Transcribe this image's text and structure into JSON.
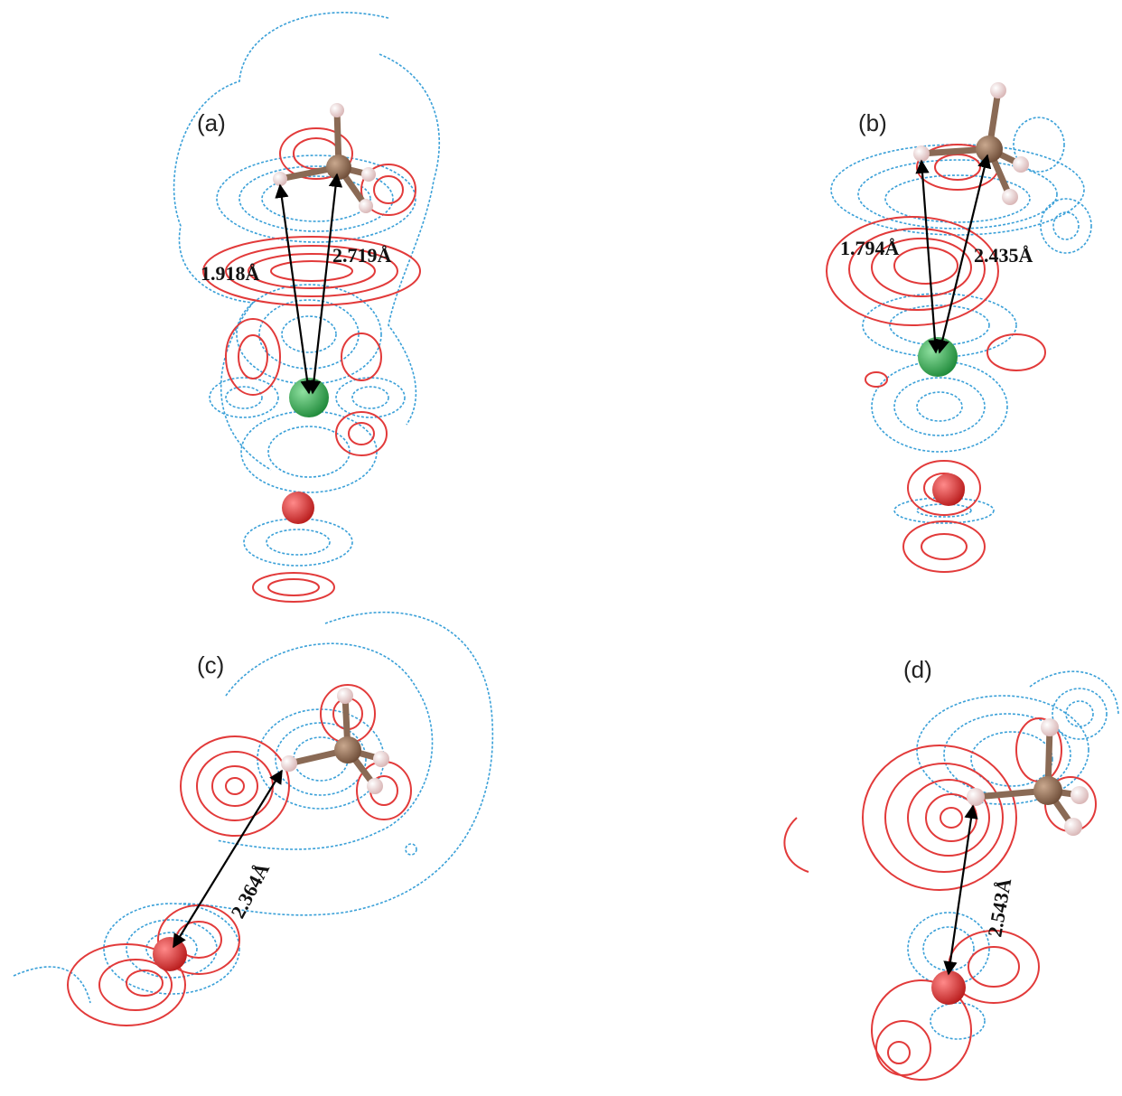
{
  "figure": {
    "panels": [
      {
        "id": "a",
        "label": "(a)",
        "distances": [
          "1.918Å",
          "2.719Å"
        ]
      },
      {
        "id": "b",
        "label": "(b)",
        "distances": [
          "1.794Å",
          "2.435Å"
        ]
      },
      {
        "id": "c",
        "label": "(c)",
        "distances": [
          "2.364Å"
        ]
      },
      {
        "id": "d",
        "label": "(d)",
        "distances": [
          "2.543Å"
        ]
      }
    ],
    "colors": {
      "positive_contour": "#e23a3a",
      "negative_contour": "#3aa0d8",
      "carbon_atom": "#7a5a45",
      "hydrogen_atom": "#f1d4d4",
      "metal_atom": "#2fa84f",
      "oxygen_atom": "#d92b2b"
    }
  }
}
